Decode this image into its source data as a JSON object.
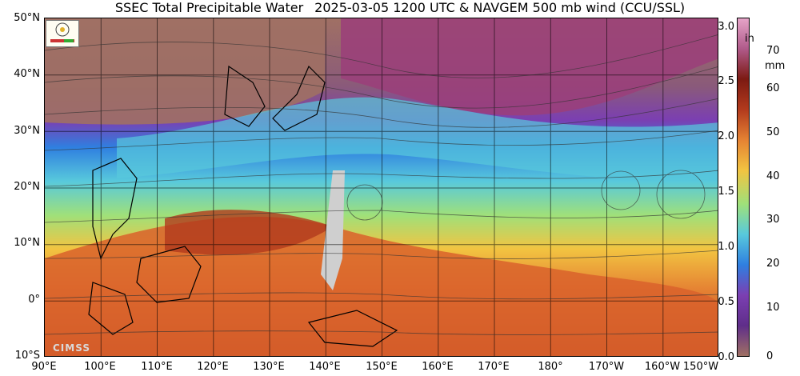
{
  "title": {
    "part1": "SSEC Total Precipitable Water",
    "part2": "2025-03-05 1200 UTC",
    "part3": "& NAVGEM 500 mb wind (CCU/SSL)"
  },
  "map": {
    "lat_labels": [
      "50°N",
      "40°N",
      "30°N",
      "20°N",
      "10°N",
      "0°",
      "10°S"
    ],
    "lon_labels": [
      "90°E",
      "100°E",
      "110°E",
      "120°E",
      "130°E",
      "140°E",
      "150°E",
      "160°E",
      "170°E",
      "180°",
      "170°W",
      "160°W",
      "150°W"
    ],
    "logo_text": "CIMSS"
  },
  "colorbar": {
    "inch_unit": "in",
    "mm_unit": "mm",
    "inch_ticks": [
      "3.0",
      "2.5",
      "2.0",
      "1.5",
      "1.0",
      "0.5",
      "0.0"
    ],
    "mm_ticks": [
      "70",
      "60",
      "50",
      "40",
      "30",
      "20",
      "10",
      "0"
    ],
    "colors": [
      "#a07064",
      "#5f2e8a",
      "#7b3fb2",
      "#2f7fe0",
      "#58c9dc",
      "#9fe07a",
      "#f2c441",
      "#e58233",
      "#b23a1d",
      "#7c1a12",
      "#b05a8a",
      "#e5a4c8"
    ]
  }
}
